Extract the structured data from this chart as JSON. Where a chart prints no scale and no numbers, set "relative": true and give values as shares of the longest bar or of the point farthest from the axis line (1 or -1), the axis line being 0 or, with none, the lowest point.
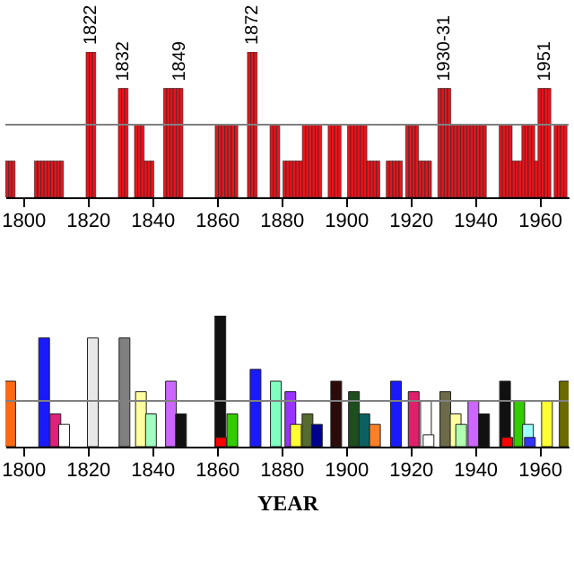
{
  "chart_data": [
    {
      "type": "bar",
      "relative": true,
      "color": "#e8141c",
      "grid": false,
      "xlim": [
        1794.5,
        1969
      ],
      "xticks": [
        1800,
        1820,
        1840,
        1860,
        1880,
        1900,
        1920,
        1940,
        1960
      ],
      "x": [
        1795,
        1796,
        1797,
        1804,
        1805,
        1806,
        1807,
        1808,
        1809,
        1810,
        1811,
        1812,
        1820,
        1821,
        1822,
        1830,
        1831,
        1832,
        1835,
        1836,
        1837,
        1838,
        1839,
        1840,
        1844,
        1845,
        1846,
        1847,
        1848,
        1849,
        1860,
        1861,
        1862,
        1863,
        1864,
        1865,
        1866,
        1870,
        1871,
        1872,
        1877,
        1878,
        1879,
        1881,
        1882,
        1883,
        1884,
        1885,
        1886,
        1887,
        1888,
        1889,
        1890,
        1891,
        1892,
        1895,
        1896,
        1897,
        1898,
        1901,
        1902,
        1903,
        1904,
        1905,
        1906,
        1907,
        1908,
        1909,
        1910,
        1913,
        1914,
        1915,
        1916,
        1917,
        1919,
        1920,
        1921,
        1922,
        1923,
        1924,
        1925,
        1926,
        1929,
        1930,
        1931,
        1932,
        1933,
        1934,
        1935,
        1936,
        1937,
        1938,
        1939,
        1940,
        1941,
        1942,
        1943,
        1948,
        1949,
        1950,
        1951,
        1952,
        1953,
        1954,
        1955,
        1956,
        1957,
        1958,
        1959,
        1960,
        1961,
        1962,
        1963,
        1965,
        1966,
        1967,
        1968
      ],
      "values": [
        0.25,
        0.25,
        0.25,
        0.25,
        0.25,
        0.25,
        0.25,
        0.25,
        0.25,
        0.25,
        0.25,
        0.25,
        1,
        1,
        1,
        0.75,
        0.75,
        0.75,
        0.5,
        0.5,
        0.5,
        0.25,
        0.25,
        0.25,
        0.75,
        0.75,
        0.75,
        0.75,
        0.75,
        0.75,
        0.5,
        0.5,
        0.5,
        0.5,
        0.5,
        0.5,
        0.5,
        1,
        1,
        1,
        0.5,
        0.5,
        0.5,
        0.25,
        0.25,
        0.25,
        0.25,
        0.25,
        0.25,
        0.5,
        0.5,
        0.5,
        0.5,
        0.5,
        0.5,
        0.5,
        0.5,
        0.5,
        0.5,
        0.5,
        0.5,
        0.5,
        0.5,
        0.5,
        0.5,
        0.25,
        0.25,
        0.25,
        0.25,
        0.25,
        0.25,
        0.25,
        0.25,
        0.25,
        0.5,
        0.5,
        0.5,
        0.5,
        0.25,
        0.25,
        0.25,
        0.25,
        0.75,
        0.75,
        0.75,
        0.75,
        0.5,
        0.5,
        0.5,
        0.5,
        0.5,
        0.5,
        0.5,
        0.5,
        0.5,
        0.5,
        0.5,
        0.5,
        0.5,
        0.5,
        0.5,
        0.25,
        0.25,
        0.25,
        0.5,
        0.5,
        0.5,
        0.5,
        0.25,
        0.75,
        0.75,
        0.75,
        0.75,
        0.5,
        0.5,
        0.5,
        0.5
      ],
      "ref_lines": [
        {
          "axis": "y",
          "value": 0.5,
          "color": "#808080"
        }
      ],
      "annotations": [
        {
          "text": "1822",
          "x": 1821,
          "y": 1
        },
        {
          "text": "1832",
          "x": 1831,
          "y": 0.75
        },
        {
          "text": "1849",
          "x": 1848.5,
          "y": 0.75
        },
        {
          "text": "1872",
          "x": 1871,
          "y": 1
        },
        {
          "text": "1930-31",
          "x": 1930.5,
          "y": 0.75
        },
        {
          "text": "1951",
          "x": 1961.5,
          "y": 0.75
        }
      ]
    },
    {
      "type": "bar",
      "relative": true,
      "grid": false,
      "xlim": [
        1794.5,
        1969
      ],
      "xticks": [
        1800,
        1820,
        1840,
        1860,
        1880,
        1900,
        1920,
        1940,
        1960
      ],
      "xlabel": "YEAR",
      "x": [
        1796,
        1806.5,
        1810,
        1812.7,
        1821.6,
        1831.4,
        1836.5,
        1839.6,
        1845.8,
        1848.9,
        1861.1,
        1861.3,
        1864.8,
        1872,
        1878.3,
        1882.8,
        1884.5,
        1888.1,
        1891,
        1897,
        1902.5,
        1905.7,
        1909,
        1915.5,
        1921,
        1924.8,
        1925.6,
        1930.8,
        1934,
        1935.7,
        1939.5,
        1942.8,
        1949.3,
        1950,
        1953.7,
        1956.4,
        1957,
        1962.3,
        1967.8
      ],
      "values": [
        0.5,
        0.83,
        0.25,
        0.17,
        0.83,
        0.83,
        0.42,
        0.25,
        0.5,
        0.25,
        1,
        0.07,
        0.25,
        0.59,
        0.5,
        0.42,
        0.17,
        0.25,
        0.17,
        0.5,
        0.42,
        0.25,
        0.17,
        0.5,
        0.42,
        0.35,
        0.09,
        0.42,
        0.25,
        0.17,
        0.35,
        0.25,
        0.5,
        0.07,
        0.35,
        0.17,
        0.07,
        0.35,
        0.5
      ],
      "colors": [
        "#ff6a13",
        "#1a1aff",
        "#e0207a",
        "#ffffff",
        "#e8e8e8",
        "#808080",
        "#ffffa0",
        "#a0ffc0",
        "#cc66ff",
        "#111111",
        "#111111",
        "#ff0000",
        "#33cc00",
        "#1a1aff",
        "#80ffc0",
        "#9933ff",
        "#ffff33",
        "#556b2f",
        "#00008b",
        "#2b0a0a",
        "#1e4d1e",
        "#0d6060",
        "#ff7f27",
        "#1a1aff",
        "#e0206a",
        "#ffffff",
        "#ffffff",
        "#6b6b4a",
        "#ffffa0",
        "#b0ffb0",
        "#cc66ff",
        "#111111",
        "#111111",
        "#ff0000",
        "#33cc00",
        "#a0ffff",
        "#3333ff",
        "#ffff33",
        "#6b6b00"
      ],
      "ref_lines": [
        {
          "axis": "y",
          "value": 0.35,
          "color": "#808080"
        }
      ]
    }
  ]
}
